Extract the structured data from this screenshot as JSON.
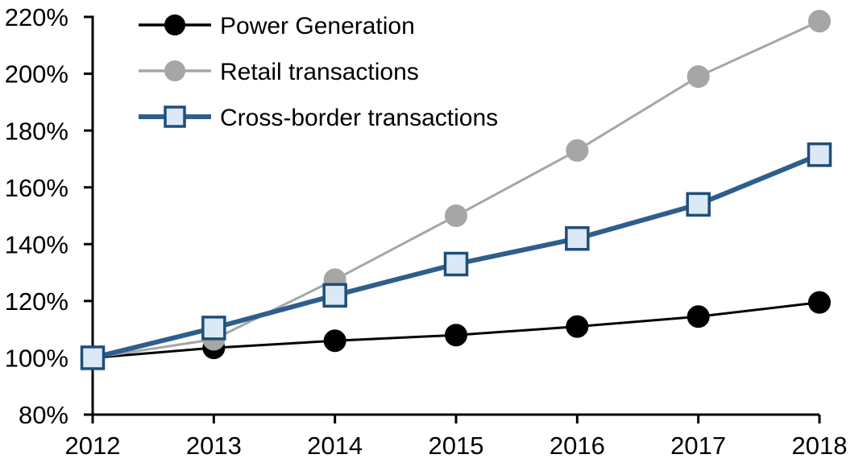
{
  "chart_data": {
    "type": "line",
    "title": "",
    "xlabel": "",
    "ylabel": "",
    "x": [
      2012,
      2013,
      2014,
      2015,
      2016,
      2017,
      2018
    ],
    "series": [
      {
        "name": "Power Generation",
        "line_color": "#000000",
        "line_width": 3,
        "marker": "circle",
        "marker_fill": "#000000",
        "marker_stroke": "#000000",
        "values": [
          100,
          103.5,
          106,
          108,
          111,
          114.5,
          119.5
        ]
      },
      {
        "name": "Retail transactions",
        "line_color": "#a6a6a6",
        "line_width": 3,
        "marker": "circle",
        "marker_fill": "#a6a6a6",
        "marker_stroke": "#a6a6a6",
        "values": [
          100,
          106.5,
          127.5,
          150,
          173,
          199,
          218.5
        ]
      },
      {
        "name": "Cross-border transactions",
        "line_color": "#2e5e8c",
        "line_width": 6,
        "marker": "square",
        "marker_fill": "#dbe9f6",
        "marker_stroke": "#1f4e79",
        "values": [
          100,
          110.5,
          122,
          133,
          142,
          154,
          171.5
        ]
      }
    ],
    "ylim": [
      80,
      220
    ],
    "ytick_step": 20,
    "ytick_suffix": "%",
    "ytick_labels": [
      "80%",
      "100%",
      "120%",
      "140%",
      "160%",
      "180%",
      "200%",
      "220%"
    ],
    "xtick_labels": [
      "2012",
      "2013",
      "2014",
      "2015",
      "2016",
      "2017",
      "2018"
    ],
    "grid": false,
    "legend_position": "top-left",
    "axis_color": "#000000",
    "text_color": "#000000"
  }
}
